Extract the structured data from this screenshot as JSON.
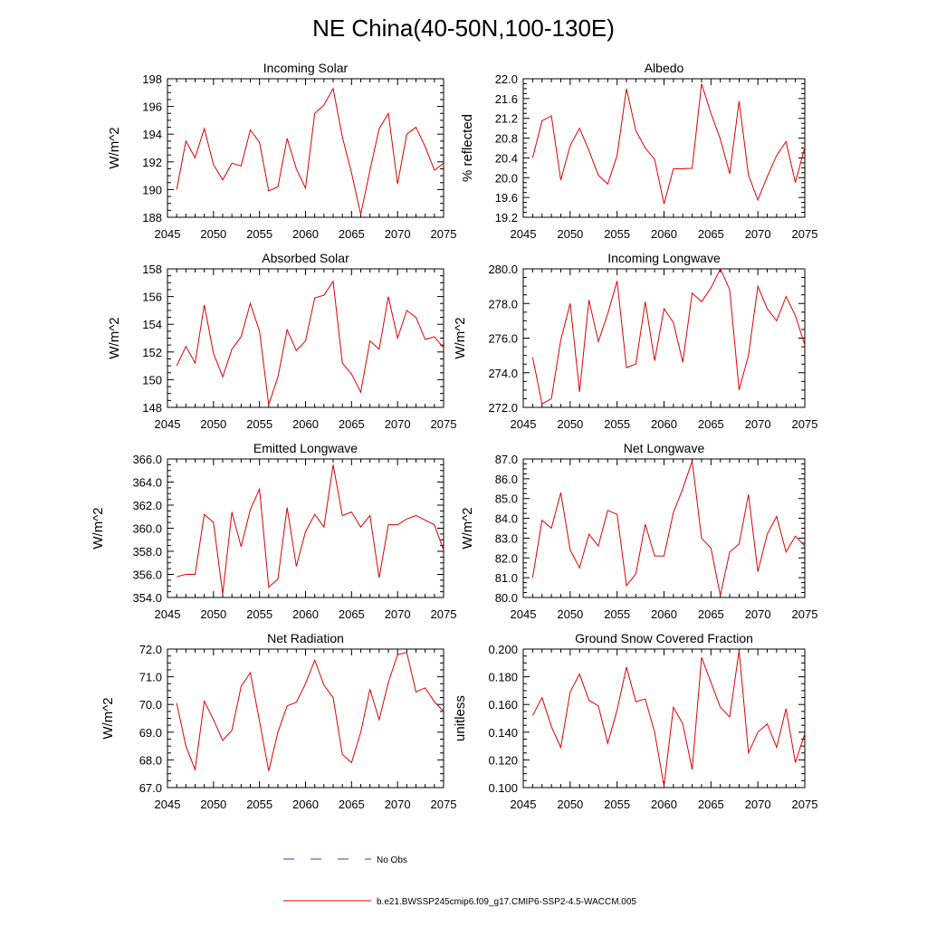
{
  "title": "NE China(40-50N,100-130E)",
  "legend": {
    "obs_label": "No Obs",
    "model_label": "b.e21.BWSSP245cmip6.f09_g17.CMIP6-SSP2-4.5-WACCM.005",
    "obs_color": "#3b3bb0",
    "model_color": "#e00000"
  },
  "chart_data": [
    {
      "type": "line",
      "title": "Incoming Solar",
      "xlabel": "",
      "ylabel": "W/m^2",
      "xlim": [
        2045,
        2075
      ],
      "ylim": [
        188,
        198
      ],
      "xticks": [
        2045,
        2050,
        2055,
        2060,
        2065,
        2070,
        2075
      ],
      "yticks": [
        "188",
        "190",
        "192",
        "194",
        "196",
        "198"
      ],
      "x": [
        2046,
        2047,
        2048,
        2049,
        2050,
        2051,
        2052,
        2053,
        2054,
        2055,
        2056,
        2057,
        2058,
        2059,
        2060,
        2061,
        2062,
        2063,
        2064,
        2065,
        2066,
        2067,
        2068,
        2069,
        2070,
        2071,
        2072,
        2073,
        2074,
        2075
      ],
      "series": [
        {
          "name": "b.e21.BWSSP245cmip6.f09_g17.CMIP6-SSP2-4.5-WACCM.005",
          "values": [
            190.0,
            193.5,
            192.3,
            194.4,
            191.8,
            190.7,
            191.9,
            191.7,
            194.3,
            193.4,
            189.9,
            190.2,
            193.7,
            191.5,
            190.1,
            195.5,
            196.1,
            197.3,
            193.8,
            191.2,
            188.2,
            191.4,
            194.4,
            195.5,
            190.4,
            194.0,
            194.5,
            193.1,
            191.4,
            191.9
          ]
        }
      ]
    },
    {
      "type": "line",
      "title": "Albedo",
      "xlabel": "",
      "ylabel": "% reflected",
      "xlim": [
        2045,
        2075
      ],
      "ylim": [
        19.2,
        22.0
      ],
      "xticks": [
        2045,
        2050,
        2055,
        2060,
        2065,
        2070,
        2075
      ],
      "yticks": [
        "19.2",
        "19.6",
        "20.0",
        "20.4",
        "20.8",
        "21.2",
        "21.6",
        "22.0"
      ],
      "x": [
        2046,
        2047,
        2048,
        2049,
        2050,
        2051,
        2052,
        2053,
        2054,
        2055,
        2056,
        2057,
        2058,
        2059,
        2060,
        2061,
        2062,
        2063,
        2064,
        2065,
        2066,
        2067,
        2068,
        2069,
        2070,
        2071,
        2072,
        2073,
        2074,
        2075
      ],
      "series": [
        {
          "name": "b.e21.BWSSP245cmip6.f09_g17.CMIP6-SSP2-4.5-WACCM.005",
          "values": [
            20.4,
            21.15,
            21.25,
            19.95,
            20.65,
            21.0,
            20.55,
            20.05,
            19.87,
            20.45,
            21.8,
            20.95,
            20.6,
            20.37,
            19.47,
            20.18,
            20.18,
            20.19,
            21.9,
            21.3,
            20.78,
            20.08,
            21.55,
            20.05,
            19.55,
            20.02,
            20.45,
            20.73,
            19.9,
            20.62
          ]
        }
      ]
    },
    {
      "type": "line",
      "title": "Absorbed Solar",
      "xlabel": "",
      "ylabel": "W/m^2",
      "xlim": [
        2045,
        2075
      ],
      "ylim": [
        148,
        158
      ],
      "xticks": [
        2045,
        2050,
        2055,
        2060,
        2065,
        2070,
        2075
      ],
      "yticks": [
        "148",
        "150",
        "152",
        "154",
        "156",
        "158"
      ],
      "x": [
        2046,
        2047,
        2048,
        2049,
        2050,
        2051,
        2052,
        2053,
        2054,
        2055,
        2056,
        2057,
        2058,
        2059,
        2060,
        2061,
        2062,
        2063,
        2064,
        2065,
        2066,
        2067,
        2068,
        2069,
        2070,
        2071,
        2072,
        2073,
        2074,
        2075
      ],
      "series": [
        {
          "name": "b.e21.BWSSP245cmip6.f09_g17.CMIP6-SSP2-4.5-WACCM.005",
          "values": [
            151.0,
            152.4,
            151.2,
            155.4,
            151.9,
            150.2,
            152.2,
            153.1,
            155.5,
            153.5,
            148.2,
            150.2,
            153.6,
            152.1,
            152.8,
            155.9,
            156.1,
            157.1,
            151.2,
            150.4,
            149.1,
            152.8,
            152.2,
            156.0,
            153.0,
            155.0,
            154.5,
            152.9,
            153.1,
            152.3
          ]
        }
      ]
    },
    {
      "type": "line",
      "title": "Incoming Longwave",
      "xlabel": "",
      "ylabel": "W/m^2",
      "xlim": [
        2045,
        2075
      ],
      "ylim": [
        272.0,
        280.0
      ],
      "xticks": [
        2045,
        2050,
        2055,
        2060,
        2065,
        2070,
        2075
      ],
      "yticks": [
        "272.0",
        "274.0",
        "276.0",
        "278.0",
        "280.0"
      ],
      "x": [
        2046,
        2047,
        2048,
        2049,
        2050,
        2051,
        2052,
        2053,
        2054,
        2055,
        2056,
        2057,
        2058,
        2059,
        2060,
        2061,
        2062,
        2063,
        2064,
        2065,
        2066,
        2067,
        2068,
        2069,
        2070,
        2071,
        2072,
        2073,
        2074,
        2075
      ],
      "series": [
        {
          "name": "b.e21.BWSSP245cmip6.f09_g17.CMIP6-SSP2-4.5-WACCM.005",
          "values": [
            274.9,
            272.2,
            272.5,
            275.9,
            278.0,
            272.9,
            278.2,
            275.8,
            277.4,
            279.3,
            274.3,
            274.5,
            278.1,
            274.7,
            277.7,
            276.9,
            274.6,
            278.6,
            278.1,
            278.9,
            280.0,
            278.8,
            273.0,
            275.0,
            279.0,
            277.7,
            277.0,
            278.4,
            277.3,
            275.6
          ]
        }
      ]
    },
    {
      "type": "line",
      "title": "Emitted Longwave",
      "xlabel": "",
      "ylabel": "W/m^2",
      "xlim": [
        2045,
        2075
      ],
      "ylim": [
        354.0,
        366.0
      ],
      "xticks": [
        2045,
        2050,
        2055,
        2060,
        2065,
        2070,
        2075
      ],
      "yticks": [
        "354.0",
        "356.0",
        "358.0",
        "360.0",
        "362.0",
        "364.0",
        "366.0"
      ],
      "x": [
        2046,
        2047,
        2048,
        2049,
        2050,
        2051,
        2052,
        2053,
        2054,
        2055,
        2056,
        2057,
        2058,
        2059,
        2060,
        2061,
        2062,
        2063,
        2064,
        2065,
        2066,
        2067,
        2068,
        2069,
        2070,
        2071,
        2072,
        2073,
        2074,
        2075
      ],
      "series": [
        {
          "name": "b.e21.BWSSP245cmip6.f09_g17.CMIP6-SSP2-4.5-WACCM.005",
          "values": [
            355.8,
            356.0,
            356.0,
            361.2,
            360.5,
            354.3,
            361.4,
            358.4,
            361.6,
            363.4,
            354.9,
            355.6,
            361.8,
            356.7,
            359.7,
            361.2,
            360.1,
            365.5,
            361.1,
            361.4,
            360.1,
            361.1,
            355.7,
            360.3,
            360.3,
            360.8,
            361.1,
            360.7,
            360.3,
            358.1
          ]
        }
      ]
    },
    {
      "type": "line",
      "title": "Net Longwave",
      "xlabel": "",
      "ylabel": "W/m^2",
      "xlim": [
        2045,
        2075
      ],
      "ylim": [
        80.0,
        87.0
      ],
      "xticks": [
        2045,
        2050,
        2055,
        2060,
        2065,
        2070,
        2075
      ],
      "yticks": [
        "80.0",
        "81.0",
        "82.0",
        "83.0",
        "84.0",
        "85.0",
        "86.0",
        "87.0"
      ],
      "x": [
        2046,
        2047,
        2048,
        2049,
        2050,
        2051,
        2052,
        2053,
        2054,
        2055,
        2056,
        2057,
        2058,
        2059,
        2060,
        2061,
        2062,
        2063,
        2064,
        2065,
        2066,
        2067,
        2068,
        2069,
        2070,
        2071,
        2072,
        2073,
        2074,
        2075
      ],
      "series": [
        {
          "name": "b.e21.BWSSP245cmip6.f09_g17.CMIP6-SSP2-4.5-WACCM.005",
          "values": [
            81.0,
            83.9,
            83.5,
            85.3,
            82.4,
            81.5,
            83.2,
            82.6,
            84.4,
            84.2,
            80.6,
            81.2,
            83.7,
            82.1,
            82.1,
            84.3,
            85.5,
            86.9,
            83.0,
            82.5,
            80.1,
            82.3,
            82.7,
            85.2,
            81.3,
            83.2,
            84.1,
            82.3,
            83.1,
            82.6
          ]
        }
      ]
    },
    {
      "type": "line",
      "title": "Net Radiation",
      "xlabel": "",
      "ylabel": "W/m^2",
      "xlim": [
        2045,
        2075
      ],
      "ylim": [
        67.0,
        72.0
      ],
      "xticks": [
        2045,
        2050,
        2055,
        2060,
        2065,
        2070,
        2075
      ],
      "yticks": [
        "67.0",
        "68.0",
        "69.0",
        "70.0",
        "71.0",
        "72.0"
      ],
      "x": [
        2046,
        2047,
        2048,
        2049,
        2050,
        2051,
        2052,
        2053,
        2054,
        2055,
        2056,
        2057,
        2058,
        2059,
        2060,
        2061,
        2062,
        2063,
        2064,
        2065,
        2066,
        2067,
        2068,
        2069,
        2070,
        2071,
        2072,
        2073,
        2074,
        2075
      ],
      "series": [
        {
          "name": "b.e21.BWSSP245cmip6.f09_g17.CMIP6-SSP2-4.5-WACCM.005",
          "values": [
            70.05,
            68.5,
            67.65,
            70.12,
            69.45,
            68.7,
            69.07,
            70.65,
            71.15,
            69.4,
            67.6,
            69.0,
            69.95,
            70.08,
            70.75,
            71.6,
            70.7,
            70.25,
            68.2,
            67.9,
            69.0,
            70.55,
            69.45,
            70.8,
            71.8,
            71.88,
            70.45,
            70.6,
            70.1,
            69.75
          ]
        }
      ]
    },
    {
      "type": "line",
      "title": "Ground Snow Covered Fraction",
      "xlabel": "",
      "ylabel": "unitless",
      "xlim": [
        2045,
        2075
      ],
      "ylim": [
        0.1,
        0.2
      ],
      "xticks": [
        2045,
        2050,
        2055,
        2060,
        2065,
        2070,
        2075
      ],
      "yticks": [
        "0.100",
        "0.120",
        "0.140",
        "0.160",
        "0.180",
        "0.200"
      ],
      "x": [
        2046,
        2047,
        2048,
        2049,
        2050,
        2051,
        2052,
        2053,
        2054,
        2055,
        2056,
        2057,
        2058,
        2059,
        2060,
        2061,
        2062,
        2063,
        2064,
        2065,
        2066,
        2067,
        2068,
        2069,
        2070,
        2071,
        2072,
        2073,
        2074,
        2075
      ],
      "series": [
        {
          "name": "b.e21.BWSSP245cmip6.f09_g17.CMIP6-SSP2-4.5-WACCM.005",
          "values": [
            0.152,
            0.165,
            0.144,
            0.129,
            0.169,
            0.182,
            0.163,
            0.159,
            0.132,
            0.156,
            0.187,
            0.162,
            0.164,
            0.14,
            0.101,
            0.158,
            0.146,
            0.113,
            0.194,
            0.176,
            0.158,
            0.151,
            0.199,
            0.125,
            0.14,
            0.146,
            0.129,
            0.157,
            0.118,
            0.139
          ]
        }
      ]
    }
  ]
}
